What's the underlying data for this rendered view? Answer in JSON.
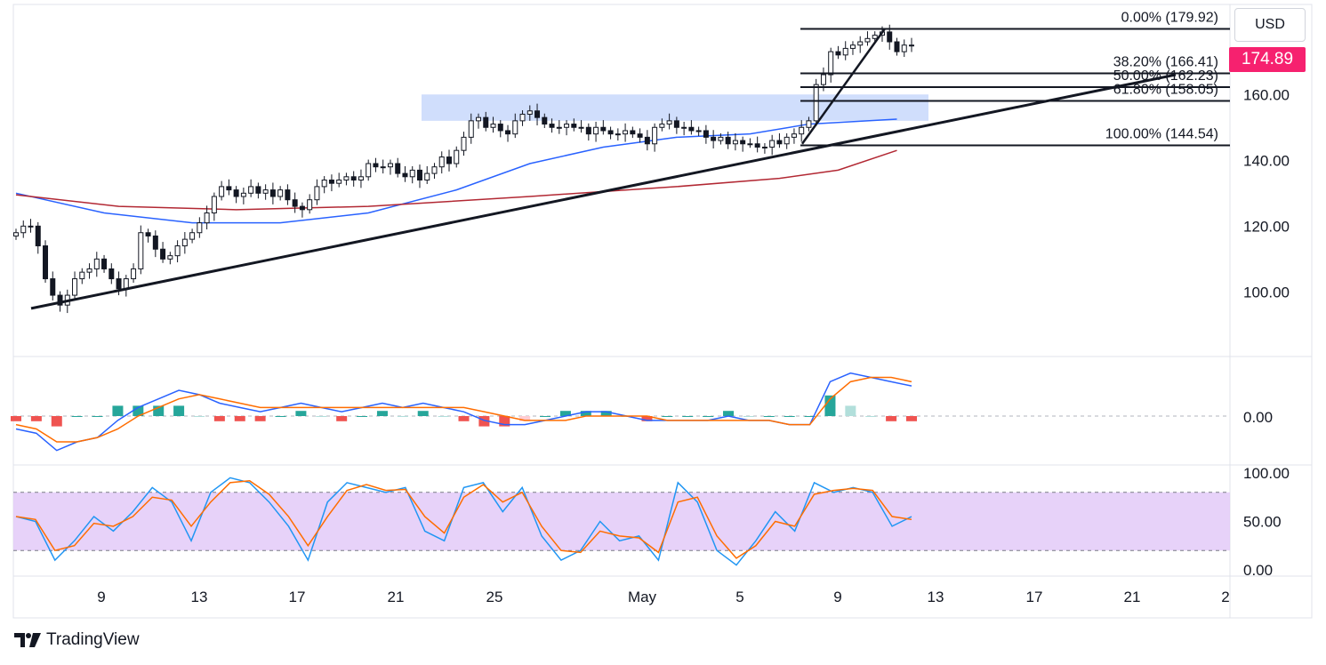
{
  "brand": {
    "name": "TradingView",
    "icon": "tradingview-logo-icon"
  },
  "currency": "USD",
  "last_price_label": "174.89",
  "colors": {
    "up": "#26a69a",
    "down": "#ef5350",
    "ema_fast": "#2962ff",
    "ema_slow": "#b22833",
    "macd": "#2962ff",
    "signal": "#ff6d00",
    "hist_up": "#26a69a",
    "hist_up_weak": "#b2dfdb",
    "hist_down": "#ef5350",
    "hist_down_weak": "#ffcdd2",
    "stoch_k": "#2196f3",
    "stoch_d": "#ff6d00",
    "stoch_band": "#e1c7f8",
    "zone": "#c8d8fb",
    "price_tag": "#f6216f"
  },
  "chart_data": [
    {
      "type": "candlestick",
      "panel": "price",
      "last_price": 174.89,
      "ylim": [
        82,
        186
      ],
      "y_ticks": [
        "100.00",
        "120.00",
        "140.00",
        "160.00"
      ],
      "x_ticks": [
        "9",
        "13",
        "17",
        "21",
        "25",
        "May",
        "5",
        "9",
        "13",
        "17",
        "21",
        "2"
      ],
      "close_series": [
        118,
        120,
        120,
        114,
        104,
        99,
        96,
        99,
        104,
        106,
        107,
        110,
        107,
        104,
        101,
        104,
        107,
        118,
        117,
        113,
        110,
        111,
        114,
        116,
        118,
        121,
        124,
        129,
        132,
        131,
        129,
        130,
        132,
        130,
        131,
        129,
        131,
        128,
        126,
        125,
        128,
        132,
        134,
        133,
        134,
        135,
        134,
        135,
        139,
        138,
        138,
        139,
        136,
        135,
        137,
        134,
        136,
        138,
        141,
        139,
        143,
        147,
        152,
        153,
        150,
        151,
        149,
        148,
        152,
        154,
        155,
        153,
        151,
        150,
        150,
        151,
        150,
        150,
        148,
        150,
        149,
        148,
        148,
        149,
        148,
        147,
        145,
        150,
        151,
        152,
        150,
        150,
        149,
        149,
        147,
        146,
        147,
        145,
        146,
        145,
        145,
        144,
        144,
        146,
        145,
        147,
        148,
        150,
        152,
        163,
        166,
        173,
        172,
        174,
        175,
        176,
        177,
        178,
        179,
        176,
        173,
        175,
        174.89
      ],
      "lines": [
        {
          "name": "EMA 50",
          "color": "#2962ff",
          "points": [
            [
              0,
              130
            ],
            [
              12,
              124
            ],
            [
              24,
              121
            ],
            [
              36,
              121
            ],
            [
              48,
              124
            ],
            [
              60,
              131
            ],
            [
              70,
              139
            ],
            [
              80,
              144
            ],
            [
              90,
              147
            ],
            [
              100,
              148
            ],
            [
              108,
              151
            ],
            [
              120,
              152.5
            ]
          ]
        },
        {
          "name": "EMA 200",
          "color": "#b22833",
          "points": [
            [
              0,
              129.5
            ],
            [
              14,
              126
            ],
            [
              30,
              125
            ],
            [
              48,
              126
            ],
            [
              70,
              129
            ],
            [
              90,
              132
            ],
            [
              104,
              134.5
            ],
            [
              112,
              137
            ],
            [
              120,
              143
            ]
          ]
        }
      ],
      "trendlines": [
        {
          "from": [
            2,
            95
          ],
          "to": [
            1370,
            163
          ]
        },
        {
          "from": [
            1050,
            145
          ],
          "to": [
            1130,
            180
          ]
        }
      ],
      "resistance_zone": {
        "from_price": 152,
        "to_price": 160
      },
      "fibonacci": [
        {
          "label": "0.00% (179.92)",
          "price": 179.92
        },
        {
          "label": "38.20% (166.41)",
          "price": 166.41
        },
        {
          "label": "50.00% (162.23)",
          "price": 162.23
        },
        {
          "label": "61.80% (158.05)",
          "price": 158.05
        },
        {
          "label": "100.00% (144.54)",
          "price": 144.54
        }
      ]
    },
    {
      "type": "macd",
      "panel": "macd",
      "zero_label": "0.00",
      "ylim": [
        -12,
        12
      ],
      "macd": [
        -3,
        -4,
        -8,
        -6,
        -5,
        -1,
        2,
        4,
        6,
        5,
        3,
        2,
        1,
        2,
        3,
        2,
        1,
        2,
        3,
        2,
        3,
        2,
        1,
        -1,
        -2,
        -2,
        -1,
        0,
        1,
        1,
        0,
        -1,
        -1,
        -1,
        -1,
        0,
        -1,
        -1,
        -2,
        -2,
        8,
        10,
        9,
        8,
        7
      ],
      "signal": [
        -2,
        -3,
        -6,
        -6,
        -5,
        -3,
        0,
        2,
        4,
        5,
        4,
        3,
        2,
        2,
        2,
        2,
        2,
        2,
        2,
        2,
        2,
        2,
        2,
        1,
        0,
        -1,
        -1,
        -1,
        0,
        0,
        0,
        0,
        -1,
        -1,
        -1,
        -1,
        -1,
        -1,
        -2,
        -2,
        4,
        8,
        9,
        9,
        8
      ]
    },
    {
      "type": "stochastic_rsi",
      "panel": "stoch",
      "ylim": [
        0,
        100
      ],
      "y_ticks": [
        "0.00",
        "50.00",
        "100.00"
      ],
      "bands": [
        20,
        80
      ],
      "k": [
        55,
        50,
        10,
        30,
        55,
        40,
        60,
        85,
        70,
        30,
        80,
        95,
        90,
        70,
        45,
        10,
        70,
        90,
        85,
        80,
        85,
        40,
        30,
        85,
        90,
        60,
        85,
        35,
        10,
        20,
        50,
        30,
        35,
        10,
        90,
        70,
        20,
        5,
        30,
        60,
        40,
        90,
        80,
        85,
        80,
        45,
        55
      ],
      "d": [
        55,
        52,
        20,
        25,
        48,
        45,
        55,
        75,
        72,
        45,
        70,
        90,
        92,
        78,
        55,
        25,
        55,
        82,
        88,
        82,
        83,
        55,
        38,
        75,
        88,
        70,
        80,
        45,
        20,
        18,
        40,
        35,
        33,
        18,
        70,
        75,
        35,
        12,
        25,
        50,
        45,
        78,
        82,
        84,
        82,
        55,
        52
      ]
    }
  ]
}
